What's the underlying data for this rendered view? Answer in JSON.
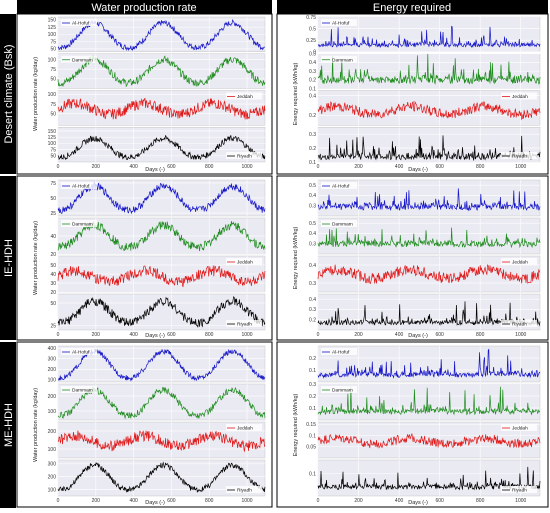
{
  "header": {
    "left_title": "Water production rate",
    "right_title": "Energy required"
  },
  "rows": [
    {
      "label": "Desert climate (Bsk)",
      "left_ylabel": "Water production rate (kg/day)",
      "right_ylabel": "Energy required (kWh/kg)",
      "xlabel": "Days (-)"
    },
    {
      "label": "IE-HDH",
      "left_ylabel": "Water production rate (kg/day)",
      "right_ylabel": "Energy required (kWh/kg)",
      "xlabel": "Days (-)"
    },
    {
      "label": "ME-HDH",
      "left_ylabel": "Water production rate (kg/day)",
      "right_ylabel": "Energy required (kWh/kg)",
      "xlabel": "Days (-)"
    }
  ],
  "chart_data": [
    {
      "type": "line",
      "row": 0,
      "side": "water",
      "title": "Water production rate",
      "xlabel": "Days (-)",
      "ylabel": "Water production rate (kg/day)",
      "xlim": [
        0,
        1095
      ],
      "xticks": [
        0,
        200,
        400,
        600,
        800,
        1000
      ],
      "panels": [
        {
          "series": "Al-Hofuf",
          "color": "#1414c8",
          "ylim": [
            40,
            160
          ],
          "yticks": [
            50,
            75,
            100,
            125,
            150
          ],
          "curve": "seasonal",
          "low": 55,
          "high": 140,
          "noise": 10
        },
        {
          "series": "Dammam",
          "color": "#1f8c1f",
          "ylim": [
            25,
            115
          ],
          "yticks": [
            50,
            75,
            100
          ],
          "curve": "seasonal",
          "low": 40,
          "high": 100,
          "noise": 10
        },
        {
          "series": "Jeddah",
          "color": "#e01818",
          "ylim": [
            20,
            110
          ],
          "yticks": [
            50,
            75,
            100
          ],
          "curve": "flat",
          "low": 45,
          "high": 80,
          "noise": 14
        },
        {
          "series": "Riyadh",
          "color": "#000000",
          "ylim": [
            25,
            165
          ],
          "yticks": [
            50,
            75,
            100,
            125,
            150
          ],
          "curve": "seasonal",
          "low": 45,
          "high": 120,
          "noise": 12
        }
      ]
    },
    {
      "type": "line",
      "row": 0,
      "side": "energy",
      "title": "Energy required",
      "xlabel": "Days (-)",
      "ylabel": "Energy required (kWh/kg)",
      "xlim": [
        0,
        1095
      ],
      "xticks": [
        0,
        200,
        400,
        600,
        800,
        1000
      ],
      "panels": [
        {
          "series": "Al-Hofuf",
          "color": "#1414c8",
          "ylim": [
            0.0,
            0.75
          ],
          "yticks": [
            0.0,
            0.25,
            0.5,
            0.75
          ],
          "curve": "spiky",
          "low": 0.1,
          "high": 0.55,
          "noise": 0.04
        },
        {
          "series": "Dammam",
          "color": "#1f8c1f",
          "ylim": [
            0.1,
            0.5
          ],
          "yticks": [
            0.1,
            0.2,
            0.3,
            0.4,
            0.5
          ],
          "curve": "spiky",
          "low": 0.17,
          "high": 0.45,
          "noise": 0.04
        },
        {
          "series": "Jeddah",
          "color": "#e01818",
          "ylim": [
            0.1,
            0.45
          ],
          "yticks": [
            0.2,
            0.4
          ],
          "curve": "flat",
          "low": 0.2,
          "high": 0.3,
          "noise": 0.05
        },
        {
          "series": "Riyadh",
          "color": "#000000",
          "ylim": [
            0.1,
            0.35
          ],
          "yticks": [
            0.1,
            0.2,
            0.3
          ],
          "curve": "spiky",
          "low": 0.12,
          "high": 0.3,
          "noise": 0.02
        }
      ]
    },
    {
      "type": "line",
      "row": 1,
      "side": "water",
      "title": "Water production rate",
      "xlabel": "Days (-)",
      "ylabel": "Water production rate (kg/day)",
      "xlim": [
        0,
        1095
      ],
      "xticks": [
        0,
        200,
        400,
        600,
        800,
        1000
      ],
      "panels": [
        {
          "series": "Al-Hofuf",
          "color": "#1414c8",
          "ylim": [
            20,
            80
          ],
          "yticks": [
            25,
            50,
            75
          ],
          "curve": "seasonal",
          "low": 30,
          "high": 70,
          "noise": 6
        },
        {
          "series": "Dammam",
          "color": "#1f8c1f",
          "ylim": [
            20,
            60
          ],
          "yticks": [
            20,
            40
          ],
          "curve": "seasonal",
          "low": 28,
          "high": 52,
          "noise": 5
        },
        {
          "series": "Jeddah",
          "color": "#e01818",
          "ylim": [
            20,
            60
          ],
          "yticks": [
            20,
            30,
            40,
            50
          ],
          "curve": "flat",
          "low": 30,
          "high": 45,
          "noise": 6
        },
        {
          "series": "Riyadh",
          "color": "#000000",
          "ylim": [
            20,
            60
          ],
          "yticks": [
            25,
            50
          ],
          "curve": "seasonal",
          "low": 28,
          "high": 52,
          "noise": 5
        }
      ]
    },
    {
      "type": "line",
      "row": 1,
      "side": "energy",
      "title": "Energy required",
      "xlabel": "Days (-)",
      "ylabel": "Energy required (kWh/kg)",
      "xlim": [
        0,
        1095
      ],
      "xticks": [
        0,
        200,
        400,
        600,
        800,
        1000
      ],
      "panels": [
        {
          "series": "Al-Hofuf",
          "color": "#1414c8",
          "ylim": [
            0.2,
            0.55
          ],
          "yticks": [
            0.3,
            0.4,
            0.5
          ],
          "curve": "spiky",
          "low": 0.27,
          "high": 0.45,
          "noise": 0.03
        },
        {
          "series": "Dammam",
          "color": "#1f8c1f",
          "ylim": [
            0.2,
            0.55
          ],
          "yticks": [
            0.3,
            0.4,
            0.5
          ],
          "curve": "spiky",
          "low": 0.28,
          "high": 0.45,
          "noise": 0.03
        },
        {
          "series": "Jeddah",
          "color": "#e01818",
          "ylim": [
            0.25,
            0.45
          ],
          "yticks": [
            0.3,
            0.4
          ],
          "curve": "flat",
          "low": 0.32,
          "high": 0.38,
          "noise": 0.03
        },
        {
          "series": "Riyadh",
          "color": "#000000",
          "ylim": [
            0.1,
            0.45
          ],
          "yticks": [
            0.2,
            0.3,
            0.4
          ],
          "curve": "spiky",
          "low": 0.15,
          "high": 0.35,
          "noise": 0.02
        }
      ]
    },
    {
      "type": "line",
      "row": 2,
      "side": "water",
      "title": "Water production rate",
      "xlabel": "Days (-)",
      "ylabel": "Water production rate (kg/day)",
      "xlim": [
        0,
        1095
      ],
      "xticks": [
        0,
        200,
        400,
        600,
        800,
        1000
      ],
      "panels": [
        {
          "series": "Al-Hofuf",
          "color": "#1414c8",
          "ylim": [
            80,
            420
          ],
          "yticks": [
            100,
            200,
            300,
            400
          ],
          "curve": "seasonal",
          "low": 120,
          "high": 370,
          "noise": 25
        },
        {
          "series": "Dammam",
          "color": "#1f8c1f",
          "ylim": [
            40,
            280
          ],
          "yticks": [
            100,
            200
          ],
          "curve": "seasonal",
          "low": 70,
          "high": 240,
          "noise": 22
        },
        {
          "series": "Jeddah",
          "color": "#e01818",
          "ylim": [
            50,
            250
          ],
          "yticks": [
            100,
            200
          ],
          "curve": "flat",
          "low": 110,
          "high": 180,
          "noise": 30
        },
        {
          "series": "Riyadh",
          "color": "#000000",
          "ylim": [
            50,
            330
          ],
          "yticks": [
            100,
            200,
            300
          ],
          "curve": "seasonal",
          "low": 100,
          "high": 290,
          "noise": 22
        }
      ]
    },
    {
      "type": "line",
      "row": 2,
      "side": "energy",
      "title": "Energy required",
      "xlabel": "Days (-)",
      "ylabel": "Energy required (kWh/kg)",
      "xlim": [
        0,
        1095
      ],
      "xticks": [
        0,
        200,
        400,
        600,
        800,
        1000
      ],
      "panels": [
        {
          "series": "Al-Hofuf",
          "color": "#1414c8",
          "ylim": [
            0.0,
            0.3
          ],
          "yticks": [
            0.1,
            0.2
          ],
          "curve": "spiky",
          "low": 0.04,
          "high": 0.25,
          "noise": 0.02
        },
        {
          "series": "Dammam",
          "color": "#1f8c1f",
          "ylim": [
            0.0,
            0.3
          ],
          "yticks": [
            0.1,
            0.2,
            0.3
          ],
          "curve": "spiky",
          "low": 0.05,
          "high": 0.25,
          "noise": 0.02
        },
        {
          "series": "Jeddah",
          "color": "#e01818",
          "ylim": [
            0.0,
            0.16
          ],
          "yticks": [
            0.05,
            0.1,
            0.15
          ],
          "curve": "flat",
          "low": 0.06,
          "high": 0.09,
          "noise": 0.02
        },
        {
          "series": "Riyadh",
          "color": "#000000",
          "ylim": [
            0.0,
            0.16
          ],
          "yticks": [
            0.1
          ],
          "curve": "spiky",
          "low": 0.03,
          "high": 0.12,
          "noise": 0.01
        }
      ]
    }
  ]
}
